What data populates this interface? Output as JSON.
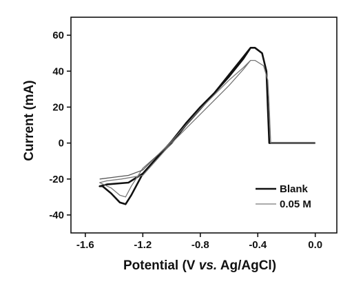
{
  "chart_data": {
    "type": "line",
    "xlabel": "Potential (V vs. Ag/AgCl)",
    "xlabel_parts": [
      "Potential (V ",
      "vs.",
      " Ag/AgCl)"
    ],
    "ylabel": "Current (mA)",
    "xlim": [
      -1.7,
      0.15
    ],
    "ylim": [
      -50,
      70
    ],
    "xticks": [
      -1.6,
      -1.2,
      -0.8,
      -0.4,
      0.0
    ],
    "xtick_labels": [
      "-1.6",
      "-1.2",
      "-0.8",
      "-0.4",
      "0.0"
    ],
    "yticks": [
      -40,
      -20,
      0,
      20,
      40,
      60
    ],
    "ytick_labels": [
      "-40",
      "-20",
      "0",
      "20",
      "40",
      "60"
    ],
    "grid": false,
    "legend": {
      "placement": "bottom-right"
    },
    "series": [
      {
        "name": "Blank",
        "color": "#111111",
        "style": "thick",
        "points": [
          [
            0.0,
            0
          ],
          [
            -0.32,
            0
          ],
          [
            -0.33,
            20
          ],
          [
            -0.34,
            40
          ],
          [
            -0.37,
            50
          ],
          [
            -0.42,
            53
          ],
          [
            -0.45,
            53
          ],
          [
            -0.5,
            48
          ],
          [
            -0.6,
            38
          ],
          [
            -0.7,
            28
          ],
          [
            -0.8,
            20
          ],
          [
            -0.9,
            11
          ],
          [
            -1.0,
            1
          ],
          [
            -1.1,
            -8
          ],
          [
            -1.2,
            -17
          ],
          [
            -1.28,
            -29
          ],
          [
            -1.32,
            -34
          ],
          [
            -1.36,
            -33
          ],
          [
            -1.42,
            -28
          ],
          [
            -1.48,
            -24
          ],
          [
            -1.5,
            -24
          ],
          [
            -1.45,
            -23
          ],
          [
            -1.3,
            -22
          ],
          [
            -1.2,
            -17
          ],
          [
            -1.1,
            -8
          ],
          [
            -1.0,
            0
          ],
          [
            -0.9,
            10
          ],
          [
            -0.8,
            19
          ],
          [
            -0.7,
            28
          ],
          [
            -0.6,
            37
          ],
          [
            -0.5,
            47
          ],
          [
            -0.45,
            53
          ]
        ]
      },
      {
        "name": "0.05 M",
        "color": "#777777",
        "style": "thin",
        "points": [
          [
            0.0,
            0
          ],
          [
            -0.31,
            0
          ],
          [
            -0.32,
            20
          ],
          [
            -0.33,
            35
          ],
          [
            -0.36,
            43
          ],
          [
            -0.42,
            46
          ],
          [
            -0.45,
            46
          ],
          [
            -0.5,
            42
          ],
          [
            -0.6,
            35
          ],
          [
            -0.7,
            27
          ],
          [
            -0.8,
            19
          ],
          [
            -0.9,
            10
          ],
          [
            -1.0,
            1
          ],
          [
            -1.1,
            -7
          ],
          [
            -1.2,
            -14
          ],
          [
            -1.28,
            -24
          ],
          [
            -1.32,
            -30
          ],
          [
            -1.36,
            -29
          ],
          [
            -1.42,
            -25
          ],
          [
            -1.5,
            -22
          ],
          [
            -1.45,
            -21
          ],
          [
            -1.35,
            -20
          ],
          [
            -1.2,
            -18
          ],
          [
            -1.1,
            -9
          ],
          [
            -1.0,
            0
          ],
          [
            -0.9,
            8
          ],
          [
            -0.8,
            16
          ],
          [
            -0.7,
            24
          ],
          [
            -0.6,
            32
          ],
          [
            -0.5,
            41
          ],
          [
            -0.45,
            46
          ]
        ]
      },
      {
        "name": "",
        "color": "#555555",
        "style": "thin",
        "points": [
          [
            -1.5,
            -20
          ],
          [
            -1.4,
            -19
          ],
          [
            -1.3,
            -18
          ],
          [
            -1.2,
            -15
          ],
          [
            -1.1,
            -7
          ],
          [
            -1.0,
            0
          ]
        ]
      }
    ]
  }
}
